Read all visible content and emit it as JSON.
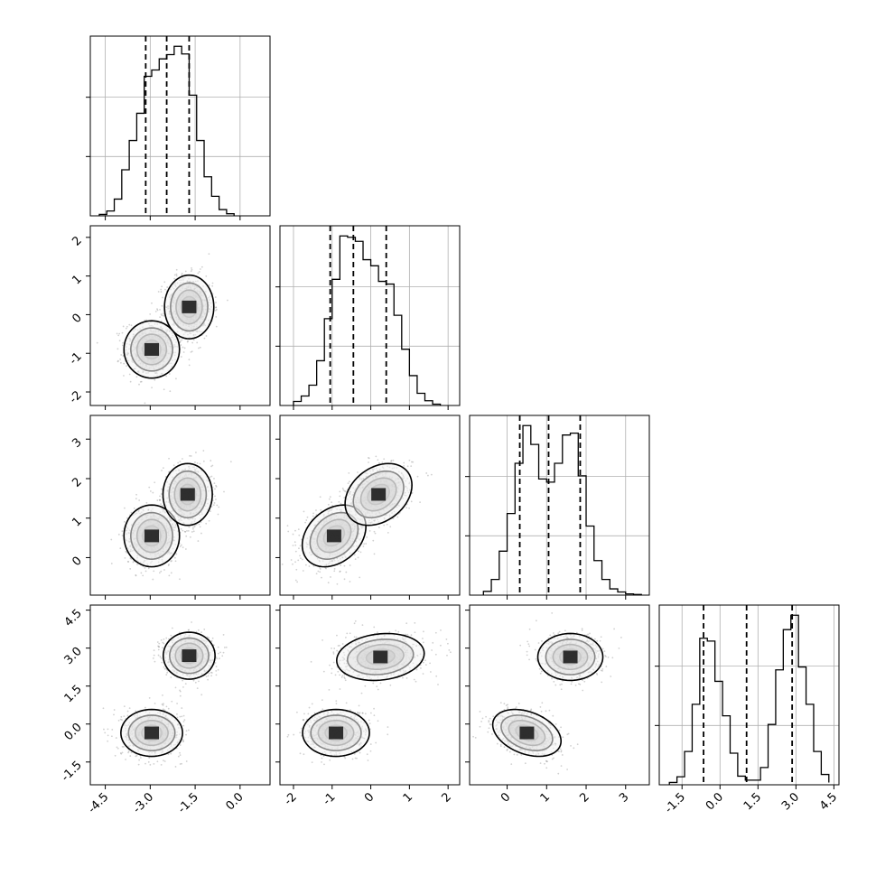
{
  "chart_data": {
    "type": "corner",
    "colors": {
      "ink": "#000000",
      "grid": "#b0b0b0",
      "frame": "#000000",
      "scatter": "#7a7a7a"
    },
    "grid": true,
    "parameters": [
      {
        "range": [
          -5.0,
          1.0
        ],
        "ticks": [
          "-4.5",
          "-3.0",
          "-1.5",
          "0.0"
        ],
        "tick_values": [
          -4.5,
          -3.0,
          -1.5,
          0.0
        ],
        "quantiles": [
          -3.15,
          -2.45,
          -1.7
        ],
        "hist_bins": [
          -4.7,
          -4.45,
          -4.2,
          -3.95,
          -3.7,
          -3.45,
          -3.2,
          -2.95,
          -2.7,
          -2.45,
          -2.2,
          -1.95,
          -1.7,
          -1.45,
          -1.2,
          -0.95,
          -0.7,
          -0.45,
          -0.2
        ],
        "hist_counts": [
          2,
          7,
          24,
          66,
          108,
          147,
          200,
          209,
          225,
          231,
          243,
          232,
          173,
          108,
          56,
          28,
          9,
          3
        ]
      },
      {
        "range": [
          -2.35,
          2.3
        ],
        "ticks": [
          "-2",
          "-1",
          "0",
          "1",
          "2"
        ],
        "tick_values": [
          -2,
          -1,
          0,
          1,
          2
        ],
        "quantiles": [
          -1.05,
          -0.45,
          0.4
        ],
        "hist_bins": [
          -2.0,
          -1.8,
          -1.6,
          -1.4,
          -1.2,
          -1.0,
          -0.8,
          -0.6,
          -0.4,
          -0.2,
          0.0,
          0.2,
          0.4,
          0.6,
          0.8,
          1.0,
          1.2,
          1.4,
          1.6,
          1.8
        ],
        "hist_counts": [
          6,
          14,
          30,
          66,
          128,
          186,
          250,
          248,
          242,
          215,
          206,
          183,
          179,
          133,
          83,
          44,
          18,
          7,
          2
        ]
      },
      {
        "range": [
          -0.95,
          3.6
        ],
        "ticks": [
          "0",
          "1",
          "2",
          "3"
        ],
        "tick_values": [
          0,
          1,
          2,
          3
        ],
        "quantiles": [
          0.32,
          1.05,
          1.85
        ],
        "hist_bins": [
          -0.6,
          -0.4,
          -0.2,
          0.0,
          0.2,
          0.4,
          0.6,
          0.8,
          1.0,
          1.2,
          1.4,
          1.6,
          1.8,
          2.0,
          2.2,
          2.4,
          2.6,
          2.8,
          3.0,
          3.2,
          3.4
        ],
        "hist_counts": [
          6,
          25,
          70,
          130,
          210,
          270,
          240,
          185,
          180,
          210,
          255,
          258,
          190,
          110,
          55,
          25,
          10,
          5,
          2,
          1
        ]
      },
      {
        "range": [
          -2.4,
          4.7
        ],
        "ticks": [
          "-1.5",
          "0.0",
          "1.5",
          "3.0",
          "4.5"
        ],
        "tick_values": [
          -1.5,
          0.0,
          1.5,
          3.0,
          4.5
        ],
        "quantiles": [
          -0.65,
          1.05,
          2.85
        ],
        "hist_bins": [
          -2.0,
          -1.7,
          -1.4,
          -1.1,
          -0.8,
          -0.5,
          -0.2,
          0.1,
          0.4,
          0.7,
          1.0,
          1.3,
          1.6,
          1.9,
          2.2,
          2.5,
          2.8,
          3.1,
          3.4,
          3.7,
          4.0,
          4.3
        ],
        "hist_counts": [
          4,
          14,
          58,
          140,
          255,
          250,
          180,
          120,
          55,
          15,
          8,
          8,
          30,
          105,
          200,
          270,
          295,
          205,
          140,
          58,
          18,
          4
        ]
      }
    ],
    "pair_clusters": [
      {
        "x": 0,
        "y": 1,
        "clusters": [
          {
            "mx": -2.95,
            "my": -0.9,
            "sx": 0.45,
            "sy": 0.36,
            "rho": 0.0,
            "w": 1
          },
          {
            "mx": -1.7,
            "my": 0.2,
            "sx": 0.4,
            "sy": 0.4,
            "rho": 0.0,
            "w": 1
          }
        ]
      },
      {
        "x": 0,
        "y": 2,
        "clusters": [
          {
            "mx": -2.95,
            "my": 0.55,
            "sx": 0.45,
            "sy": 0.38,
            "rho": 0.0,
            "w": 1
          },
          {
            "mx": -1.75,
            "my": 1.6,
            "sx": 0.4,
            "sy": 0.38,
            "rho": 0.0,
            "w": 1
          }
        ]
      },
      {
        "x": 1,
        "y": 2,
        "clusters": [
          {
            "mx": -0.95,
            "my": 0.55,
            "sx": 0.4,
            "sy": 0.38,
            "rho": 0.3,
            "w": 1
          },
          {
            "mx": 0.2,
            "my": 1.6,
            "sx": 0.42,
            "sy": 0.38,
            "rho": 0.3,
            "w": 1
          }
        ]
      },
      {
        "x": 0,
        "y": 3,
        "clusters": [
          {
            "mx": -2.95,
            "my": -0.35,
            "sx": 0.5,
            "sy": 0.45,
            "rho": 0.0,
            "w": 1
          },
          {
            "mx": -1.7,
            "my": 2.7,
            "sx": 0.42,
            "sy": 0.45,
            "rho": 0.0,
            "w": 1
          }
        ]
      },
      {
        "x": 1,
        "y": 3,
        "clusters": [
          {
            "mx": -0.9,
            "my": -0.35,
            "sx": 0.42,
            "sy": 0.45,
            "rho": 0.0,
            "w": 1
          },
          {
            "mx": 0.25,
            "my": 2.65,
            "sx": 0.55,
            "sy": 0.45,
            "rho": 0.15,
            "w": 1
          }
        ]
      },
      {
        "x": 2,
        "y": 3,
        "clusters": [
          {
            "mx": 0.5,
            "my": -0.35,
            "sx": 0.42,
            "sy": 0.45,
            "rho": -0.35,
            "w": 1
          },
          {
            "mx": 1.6,
            "my": 2.65,
            "sx": 0.4,
            "sy": 0.45,
            "rho": 0.0,
            "w": 1
          }
        ]
      }
    ]
  }
}
